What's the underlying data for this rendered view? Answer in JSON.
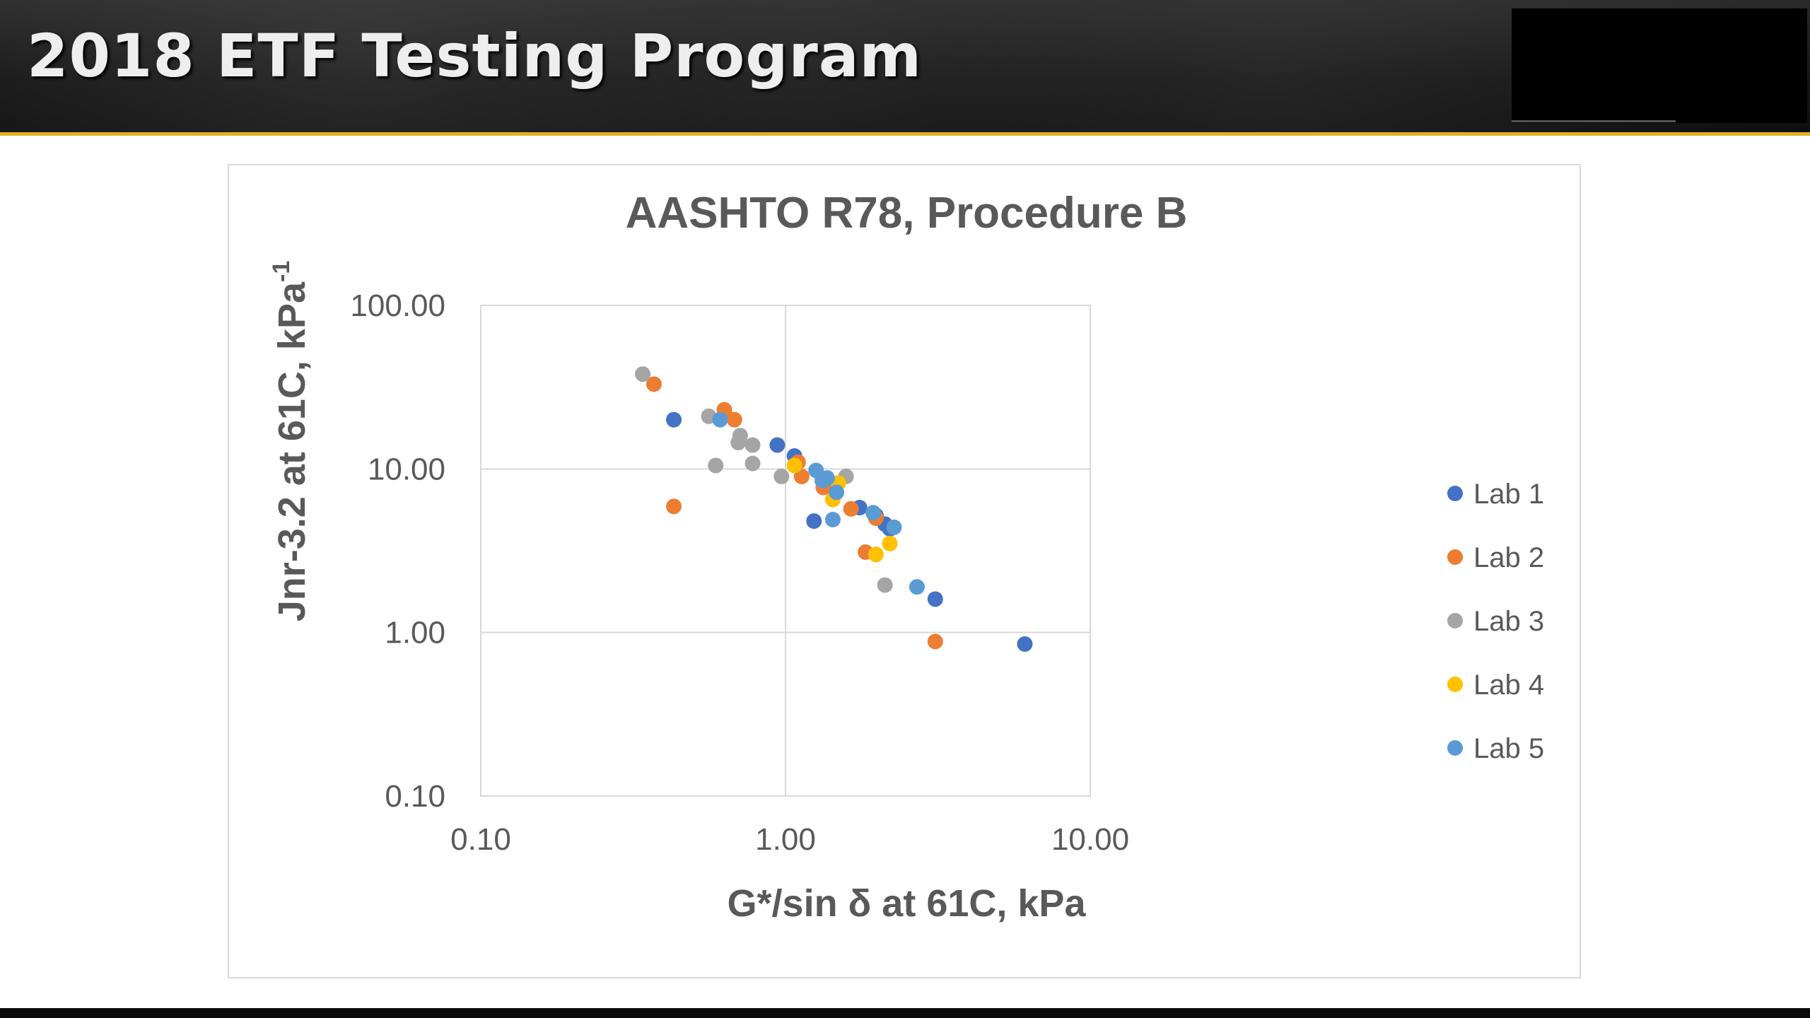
{
  "header": {
    "title": "2018 ETF Testing Program"
  },
  "theme": {
    "accent": "#e0b31e",
    "header_bg": "#1a1a1a"
  },
  "chart_data": {
    "type": "scatter",
    "title": "AASHTO R78, Procedure B",
    "xlabel": "G*/sin δ at 61C, kPa",
    "ylabel_main": "Jnr-3.2 at 61C, kPa",
    "ylabel_sup": "-1",
    "x_scale": "log",
    "y_scale": "log",
    "xlim": [
      0.1,
      10
    ],
    "ylim": [
      0.1,
      100
    ],
    "x_ticks": [
      "0.10",
      "1.00",
      "10.00"
    ],
    "y_ticks": [
      "100.00",
      "10.00",
      "1.00",
      "0.10"
    ],
    "grid": true,
    "legend_position": "right",
    "series": [
      {
        "name": "Lab 1",
        "color": "#4472c4",
        "points": [
          [
            0.43,
            20
          ],
          [
            0.94,
            14
          ],
          [
            1.07,
            12
          ],
          [
            1.24,
            4.8
          ],
          [
            1.35,
            7.8
          ],
          [
            1.75,
            5.8
          ],
          [
            1.98,
            5.2
          ],
          [
            2.12,
            4.6
          ],
          [
            2.2,
            4.3
          ],
          [
            3.1,
            1.6
          ],
          [
            6.1,
            0.85
          ]
        ]
      },
      {
        "name": "Lab 2",
        "color": "#ed7d31",
        "points": [
          [
            0.37,
            33
          ],
          [
            0.43,
            5.9
          ],
          [
            0.63,
            23
          ],
          [
            0.68,
            20
          ],
          [
            1.1,
            11
          ],
          [
            1.13,
            9
          ],
          [
            1.33,
            7.7
          ],
          [
            1.64,
            5.7
          ],
          [
            1.83,
            3.1
          ],
          [
            1.98,
            5
          ],
          [
            3.1,
            0.88
          ]
        ]
      },
      {
        "name": "Lab 3",
        "color": "#a5a5a5",
        "points": [
          [
            0.34,
            38
          ],
          [
            0.56,
            21
          ],
          [
            0.59,
            10.5
          ],
          [
            0.7,
            14.5
          ],
          [
            0.71,
            16
          ],
          [
            0.78,
            10.8
          ],
          [
            0.78,
            14
          ],
          [
            0.97,
            9
          ],
          [
            1.58,
            9
          ],
          [
            2.12,
            1.95
          ]
        ]
      },
      {
        "name": "Lab 4",
        "color": "#ffc000",
        "points": [
          [
            1.07,
            10.5
          ],
          [
            1.43,
            6.5
          ],
          [
            1.49,
            8.2
          ],
          [
            1.98,
            3
          ],
          [
            2.2,
            3.5
          ]
        ]
      },
      {
        "name": "Lab 5",
        "color": "#5b9bd5",
        "points": [
          [
            0.61,
            20
          ],
          [
            1.26,
            9.8
          ],
          [
            1.32,
            8.5
          ],
          [
            1.37,
            8.8
          ],
          [
            1.43,
            4.9
          ],
          [
            1.47,
            7.2
          ],
          [
            1.94,
            5.4
          ],
          [
            2.27,
            4.4
          ],
          [
            2.7,
            1.9
          ]
        ]
      }
    ]
  }
}
